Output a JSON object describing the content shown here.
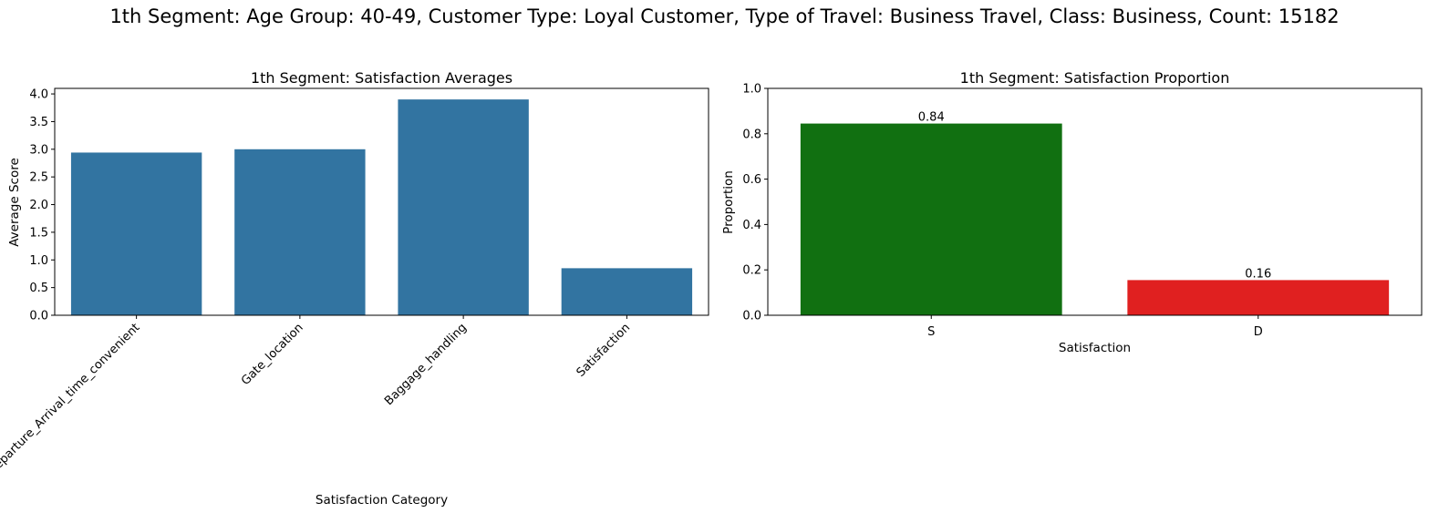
{
  "suptitle": "1th Segment: Age Group: 40-49, Customer Type: Loyal Customer, Type of Travel: Business Travel, Class: Business, Count: 15182",
  "chart_data": [
    {
      "type": "bar",
      "title": "1th Segment: Satisfaction Averages",
      "xlabel": "Satisfaction Category",
      "ylabel": "Average Score",
      "categories": [
        "Departure_Arrival_time_convenient",
        "Gate_location",
        "Baggage_handling",
        "Satisfaction"
      ],
      "values": [
        2.94,
        3.0,
        3.9,
        0.85
      ],
      "ylim": [
        0,
        4.1
      ],
      "yticks": [
        0.0,
        0.5,
        1.0,
        1.5,
        2.0,
        2.5,
        3.0,
        3.5,
        4.0
      ],
      "ytick_labels": [
        "0.0",
        "0.5",
        "1.0",
        "1.5",
        "2.0",
        "2.5",
        "3.0",
        "3.5",
        "4.0"
      ],
      "colors": [
        "#3274a1",
        "#3274a1",
        "#3274a1",
        "#3274a1"
      ],
      "xtick_rotation": 45,
      "grid": false
    },
    {
      "type": "bar",
      "title": "1th Segment: Satisfaction Proportion",
      "xlabel": "Satisfaction",
      "ylabel": "Proportion",
      "categories": [
        "S",
        "D"
      ],
      "values": [
        0.845,
        0.155
      ],
      "data_labels": [
        "0.84",
        "0.16"
      ],
      "ylim": [
        0,
        1.0
      ],
      "yticks": [
        0.0,
        0.2,
        0.4,
        0.6,
        0.8,
        1.0
      ],
      "ytick_labels": [
        "0.0",
        "0.2",
        "0.4",
        "0.6",
        "0.8",
        "1.0"
      ],
      "colors": [
        "#117011",
        "#e02020"
      ],
      "grid": false
    }
  ]
}
